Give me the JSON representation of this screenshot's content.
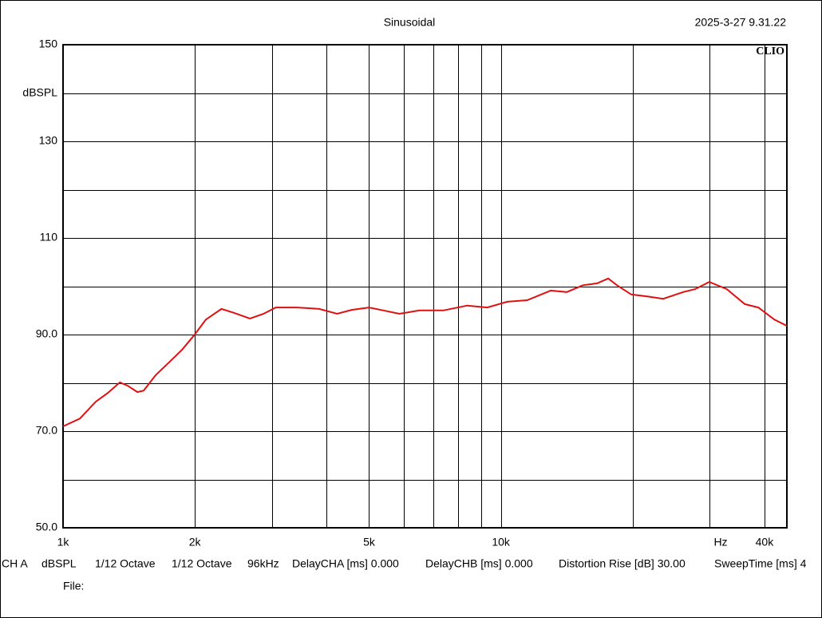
{
  "chart_data": {
    "type": "line",
    "title": "Sinusoidal",
    "timestamp": "2025-3-27 9.31.22",
    "brand": "CLIO",
    "x_unit_label": "Hz",
    "y_unit_label": "dBSPL",
    "log_x": true,
    "grid": true,
    "xlim": [
      1000,
      45000
    ],
    "ylim": [
      50,
      150
    ],
    "xticks": [
      {
        "value": 1000,
        "label": "1k"
      },
      {
        "value": 2000,
        "label": "2k"
      },
      {
        "value": 5000,
        "label": "5k"
      },
      {
        "value": 10000,
        "label": "10k"
      },
      {
        "value": 40000,
        "label": "40k"
      }
    ],
    "xgrid": [
      1000,
      2000,
      3000,
      4000,
      5000,
      6000,
      7000,
      8000,
      9000,
      10000,
      20000,
      30000,
      40000
    ],
    "yticks": [
      150,
      130,
      110,
      {
        "value": 90,
        "label": "90.0"
      },
      {
        "value": 70,
        "label": "70.0"
      },
      {
        "value": 50,
        "label": "50.0"
      }
    ],
    "ygrid": [
      50,
      60,
      70,
      80,
      90,
      100,
      110,
      120,
      130,
      140,
      150
    ],
    "series": [
      {
        "name": "CH A",
        "color": "#e01010",
        "x": [
          1000,
          1092,
          1188,
          1265,
          1348,
          1405,
          1478,
          1528,
          1628,
          1735,
          1871,
          1990,
          2120,
          2300,
          2456,
          2672,
          2871,
          3060,
          3425,
          3847,
          4226,
          4562,
          5000,
          5392,
          5863,
          6512,
          7389,
          8374,
          9309,
          10340,
          11480,
          13000,
          14140,
          15380,
          16580,
          17580,
          18420,
          19850,
          21600,
          23480,
          26080,
          27770,
          29930,
          32800,
          36070,
          38720,
          42110,
          45000
        ],
        "values": [
          71.0,
          72.6,
          76.1,
          77.9,
          80.1,
          79.4,
          78.1,
          78.4,
          81.6,
          84.0,
          86.9,
          89.8,
          93.1,
          95.3,
          94.5,
          93.3,
          94.3,
          95.6,
          95.6,
          95.3,
          94.3,
          95.1,
          95.6,
          95.0,
          94.3,
          95.0,
          95.0,
          96.0,
          95.6,
          96.8,
          97.1,
          99.1,
          98.8,
          100.2,
          100.6,
          101.6,
          100.2,
          98.3,
          97.9,
          97.4,
          98.8,
          99.4,
          100.9,
          99.4,
          96.3,
          95.6,
          93.1,
          91.8
        ]
      }
    ],
    "footer": [
      "CH A",
      "dBSPL",
      "1/12 Octave",
      "1/12 Octave",
      "96kHz",
      "DelayCHA [ms] 0.000",
      "DelayCHB [ms] 0.000",
      "Distortion Rise [dB] 30.00",
      "SweepTime [ms] 4"
    ],
    "file_label": "File:"
  }
}
